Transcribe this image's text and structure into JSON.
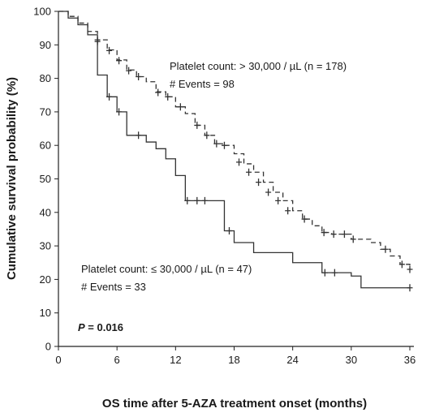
{
  "chart_data": {
    "type": "line",
    "subtype": "kaplan-meier",
    "xlabel": "OS time after 5-AZA treatment onset (months)",
    "ylabel": "Cumulative survival probability (%)",
    "xlim": [
      0,
      36
    ],
    "ylim": [
      0,
      100
    ],
    "xticks": [
      0,
      6,
      12,
      18,
      24,
      30,
      36
    ],
    "yticks": [
      0,
      10,
      20,
      30,
      40,
      50,
      60,
      70,
      80,
      90,
      100
    ],
    "grid": false,
    "series": [
      {
        "name": "Platelet count: > 30,000 / µL (n = 178)",
        "style": "dashed",
        "color": "#333333",
        "steps": [
          [
            0,
            100
          ],
          [
            1,
            98.5
          ],
          [
            2,
            96.5
          ],
          [
            3,
            94
          ],
          [
            4,
            91.5
          ],
          [
            5,
            88.5
          ],
          [
            6,
            85.5
          ],
          [
            7,
            82.5
          ],
          [
            8,
            80.5
          ],
          [
            9,
            79
          ],
          [
            10,
            76
          ],
          [
            11,
            74.5
          ],
          [
            12,
            71.5
          ],
          [
            13,
            69.5
          ],
          [
            14,
            66
          ],
          [
            15,
            63
          ],
          [
            16,
            60.5
          ],
          [
            17,
            60
          ],
          [
            18,
            57.5
          ],
          [
            19,
            54.5
          ],
          [
            20,
            52
          ],
          [
            21,
            49
          ],
          [
            22,
            46
          ],
          [
            23,
            43.5
          ],
          [
            24,
            40.5
          ],
          [
            25,
            38
          ],
          [
            26,
            36
          ],
          [
            27,
            34
          ],
          [
            28,
            33.5
          ],
          [
            30,
            32
          ],
          [
            32,
            31
          ],
          [
            33,
            29
          ],
          [
            34,
            27
          ],
          [
            35,
            24.5
          ],
          [
            36,
            23
          ]
        ],
        "censored": [
          [
            4,
            91.5
          ],
          [
            5.2,
            88.3
          ],
          [
            6.2,
            85.3
          ],
          [
            7.2,
            82.3
          ],
          [
            8.2,
            80.5
          ],
          [
            10.2,
            75.8
          ],
          [
            11.2,
            74.5
          ],
          [
            12.5,
            71.5
          ],
          [
            14.2,
            66
          ],
          [
            15.2,
            63
          ],
          [
            16.2,
            60.5
          ],
          [
            17,
            60
          ],
          [
            18.5,
            55
          ],
          [
            19.5,
            52
          ],
          [
            20.5,
            49
          ],
          [
            21.5,
            46
          ],
          [
            22.5,
            43.5
          ],
          [
            23.5,
            40.5
          ],
          [
            25.2,
            38
          ],
          [
            27.2,
            34
          ],
          [
            28.2,
            33.5
          ],
          [
            29.3,
            33.5
          ],
          [
            30.2,
            32
          ],
          [
            33.5,
            29
          ],
          [
            35.2,
            24.5
          ],
          [
            36,
            23
          ]
        ]
      },
      {
        "name": "Platelet count: ≤ 30,000 / µL (n = 47)",
        "style": "solid",
        "color": "#333333",
        "steps": [
          [
            0,
            100
          ],
          [
            1,
            98
          ],
          [
            2,
            96
          ],
          [
            3,
            93
          ],
          [
            4,
            81
          ],
          [
            5,
            74.5
          ],
          [
            6,
            70
          ],
          [
            7,
            63
          ],
          [
            9,
            61
          ],
          [
            10,
            59
          ],
          [
            11,
            56
          ],
          [
            12,
            51
          ],
          [
            13,
            43.5
          ],
          [
            17,
            34.5
          ],
          [
            18,
            31
          ],
          [
            20,
            28
          ],
          [
            24,
            25
          ],
          [
            27,
            22
          ],
          [
            30,
            21
          ],
          [
            31,
            17.5
          ],
          [
            36,
            17.5
          ]
        ],
        "censored": [
          [
            4,
            91
          ],
          [
            5.2,
            74.5
          ],
          [
            6.2,
            70
          ],
          [
            8.2,
            63
          ],
          [
            13.2,
            43.5
          ],
          [
            14.2,
            43.5
          ],
          [
            15,
            43.5
          ],
          [
            17.5,
            34.5
          ],
          [
            27.3,
            22
          ],
          [
            28.3,
            22
          ],
          [
            36,
            17.5
          ]
        ]
      }
    ],
    "annotations": {
      "high_label": "Platelet count: > 30,000 / µL (n = 178)",
      "high_events": "# Events = 98",
      "low_label": "Platelet count: ≤ 30,000 / µL (n = 47)",
      "low_events": "# Events = 33",
      "p_label": "P",
      "p_value": " = 0.016"
    }
  }
}
